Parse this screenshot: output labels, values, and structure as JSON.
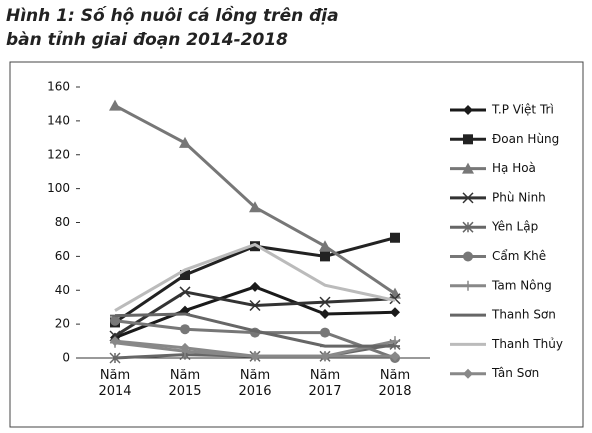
{
  "chart_data": {
    "type": "line",
    "title": "Hình 1: Số hộ nuôi cá lồng trên địa bàn tỉnh giai đoạn 2014-2018",
    "categories": [
      "Năm 2014",
      "Năm 2015",
      "Năm 2016",
      "Năm 2017",
      "Năm 2018"
    ],
    "ylim": [
      0,
      160
    ],
    "yticks": [
      0,
      20,
      40,
      60,
      80,
      100,
      120,
      140,
      160
    ],
    "grid": false,
    "legend": "right",
    "series": [
      {
        "name": "T.P Việt Trì",
        "color": "#1a1a1a",
        "marker": "diamond",
        "values": [
          12,
          28,
          42,
          26,
          27
        ]
      },
      {
        "name": "Đoan Hùng",
        "color": "#222222",
        "marker": "square",
        "values": [
          21,
          49,
          66,
          60,
          71
        ]
      },
      {
        "name": "Hạ Hoà",
        "color": "#777777",
        "marker": "triangle",
        "values": [
          149,
          127,
          89,
          66,
          38
        ]
      },
      {
        "name": "Phù Ninh",
        "color": "#333333",
        "marker": "x",
        "values": [
          13,
          39,
          31,
          33,
          35
        ]
      },
      {
        "name": "Yên Lập",
        "color": "#666666",
        "marker": "star",
        "values": [
          0,
          2,
          1,
          1,
          8
        ]
      },
      {
        "name": "Cẩm Khê",
        "color": "#777777",
        "marker": "circle",
        "values": [
          22,
          17,
          15,
          15,
          0
        ]
      },
      {
        "name": "Tam Nông",
        "color": "#888888",
        "marker": "plus",
        "values": [
          9,
          4,
          1,
          1,
          10
        ]
      },
      {
        "name": "Thanh Sơn",
        "color": "#666666",
        "marker": "dash",
        "values": [
          25,
          26,
          16,
          7,
          7
        ]
      },
      {
        "name": "Thanh Thủy",
        "color": "#bbbbbb",
        "marker": "none",
        "values": [
          28,
          52,
          67,
          43,
          34
        ]
      },
      {
        "name": "Tân Sơn",
        "color": "#888888",
        "marker": "diamond",
        "values": [
          10,
          6,
          1,
          1,
          1
        ]
      }
    ]
  }
}
